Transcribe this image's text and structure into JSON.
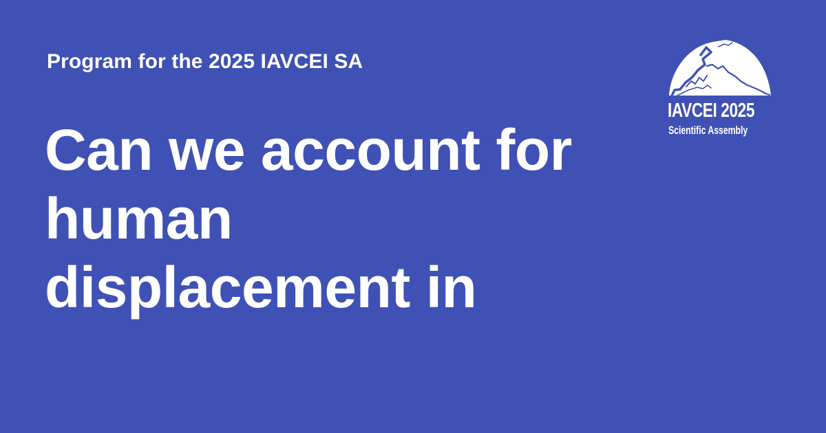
{
  "card": {
    "eyebrow": "Program for the 2025 IAVCEI SA",
    "headline_lines": [
      "Can we account for",
      "human",
      "displacement in"
    ]
  },
  "logo": {
    "title": "IAVCEI 2025",
    "subtitle": "Scientific Assembly"
  },
  "colors": {
    "background": "#4051b5",
    "text": "#ffffff"
  }
}
